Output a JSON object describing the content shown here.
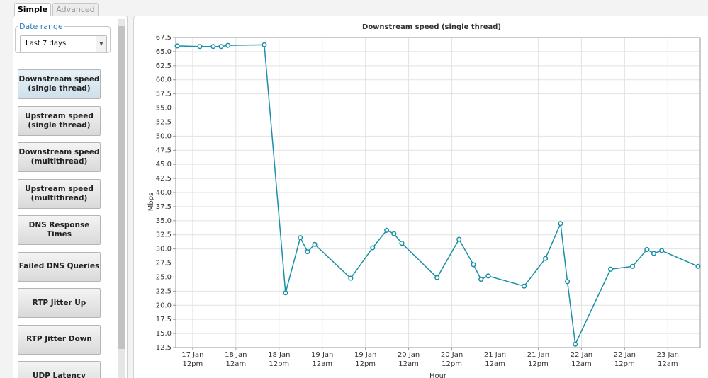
{
  "tabs": [
    "Simple",
    "Advanced"
  ],
  "date_range": {
    "legend": "Date range",
    "selected": "Last 7 days"
  },
  "buttons": [
    [
      "Downstream speed",
      "(single thread)"
    ],
    [
      "Upstream speed",
      "(single thread)"
    ],
    [
      "Downstream speed",
      "(multithread)"
    ],
    [
      "Upstream speed",
      "(multithread)"
    ],
    [
      "DNS Response Times"
    ],
    [
      "Failed DNS Queries"
    ],
    [
      "RTP Jitter Up"
    ],
    [
      "RTP Jitter Down"
    ],
    [
      "UDP Latency"
    ]
  ],
  "chart_data": {
    "type": "line",
    "title": "Downstream speed (single thread)",
    "x_label": "Hour",
    "y_label": "Mbps",
    "color": "#1a8fa6",
    "grid": true,
    "x": [
      7.7,
      14,
      17.7,
      19.9,
      21.8,
      31.9,
      37.8,
      41.9,
      43.9,
      45.9,
      55.9,
      62.0,
      65.9,
      67.9,
      70.1,
      79.9,
      86.0,
      90.0,
      92.1,
      94.1,
      104.1,
      110.0,
      114.2,
      116.1,
      118.3,
      128.1,
      134.2,
      138.2,
      140.1,
      142.3,
      152.4
    ],
    "values": [
      66.0,
      65.9,
      65.9,
      65.9,
      66.1,
      66.2,
      22.2,
      32.0,
      29.5,
      30.8,
      24.8,
      30.2,
      33.3,
      32.7,
      31.0,
      24.9,
      31.7,
      27.2,
      24.6,
      25.2,
      23.4,
      28.3,
      34.5,
      24.2,
      13.1,
      26.4,
      26.9,
      29.9,
      29.2,
      29.7,
      26.9
    ],
    "xlim": [
      7.3,
      153
    ],
    "xticks": [
      {
        "value": 12,
        "label": "17 Jan 12pm"
      },
      {
        "value": 24,
        "label": "18 Jan 12am"
      },
      {
        "value": 36,
        "label": "18 Jan 12pm"
      },
      {
        "value": 48,
        "label": "19 Jan 12am"
      },
      {
        "value": 60,
        "label": "19 Jan 12pm"
      },
      {
        "value": 72,
        "label": "20 Jan 12am"
      },
      {
        "value": 84,
        "label": "20 Jan 12pm"
      },
      {
        "value": 96,
        "label": "21 Jan 12am"
      },
      {
        "value": 108,
        "label": "21 Jan 12pm"
      },
      {
        "value": 120,
        "label": "22 Jan 12am"
      },
      {
        "value": 132,
        "label": "22 Jan 12pm"
      },
      {
        "value": 144,
        "label": "23 Jan 12am"
      }
    ],
    "ylim": [
      12.5,
      67.5
    ],
    "yticks": [
      12.5,
      {
        "value": 15,
        "label": "15.0"
      },
      17.5,
      {
        "value": 20,
        "label": "20.0"
      },
      22.5,
      {
        "value": 25,
        "label": "25.0"
      },
      27.5,
      {
        "value": 30,
        "label": "30.0"
      },
      32.5,
      {
        "value": 35,
        "label": "35.0"
      },
      37.5,
      {
        "value": 40,
        "label": "40.0"
      },
      42.5,
      {
        "value": 45,
        "label": "45.0"
      },
      47.5,
      {
        "value": 50,
        "label": "50.0"
      },
      52.5,
      {
        "value": 55,
        "label": "55.0"
      },
      57.5,
      {
        "value": 60,
        "label": "60.0"
      },
      62.5,
      {
        "value": 65,
        "label": "65.0"
      },
      67.5
    ]
  }
}
